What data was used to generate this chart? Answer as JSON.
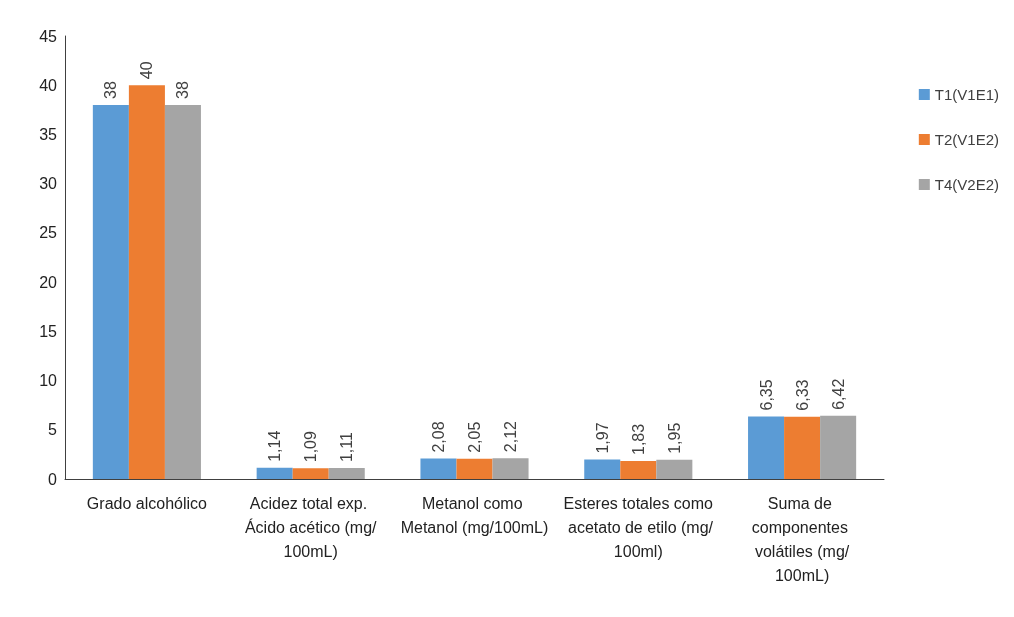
{
  "chart_data": {
    "type": "bar",
    "categories": [
      "Grado alcohólico",
      "Acidez total exp. Ácido acético (mg/100mL)",
      "Metanol como Metanol (mg/100mL)",
      "Esteres totales como acetato de etilo (mg/100ml)",
      "Suma de componentes volátiles (mg/100mL)"
    ],
    "series": [
      {
        "name": "T1(V1E1)",
        "color": "#5b9bd5",
        "values": [
          38,
          1.14,
          2.08,
          1.97,
          6.35
        ],
        "value_labels": [
          "38",
          "1,14",
          "2,08",
          "1,97",
          "6,35"
        ]
      },
      {
        "name": "T2(V1E2)",
        "color": "#ed7d31",
        "values": [
          40,
          1.09,
          2.05,
          1.83,
          6.33
        ],
        "value_labels": [
          "40",
          "1,09",
          "2,05",
          "1,83",
          "6,33"
        ]
      },
      {
        "name": "T4(V2E2)",
        "color": "#a5a5a5",
        "values": [
          38,
          1.11,
          2.12,
          1.95,
          6.42
        ],
        "value_labels": [
          "38",
          "1,11",
          "2,12",
          "1,95",
          "6,42"
        ]
      }
    ],
    "ylim": [
      0,
      45
    ],
    "yticks": [
      0,
      5,
      10,
      15,
      20,
      25,
      30,
      35,
      40,
      45
    ],
    "grid": false,
    "legend": "right"
  }
}
